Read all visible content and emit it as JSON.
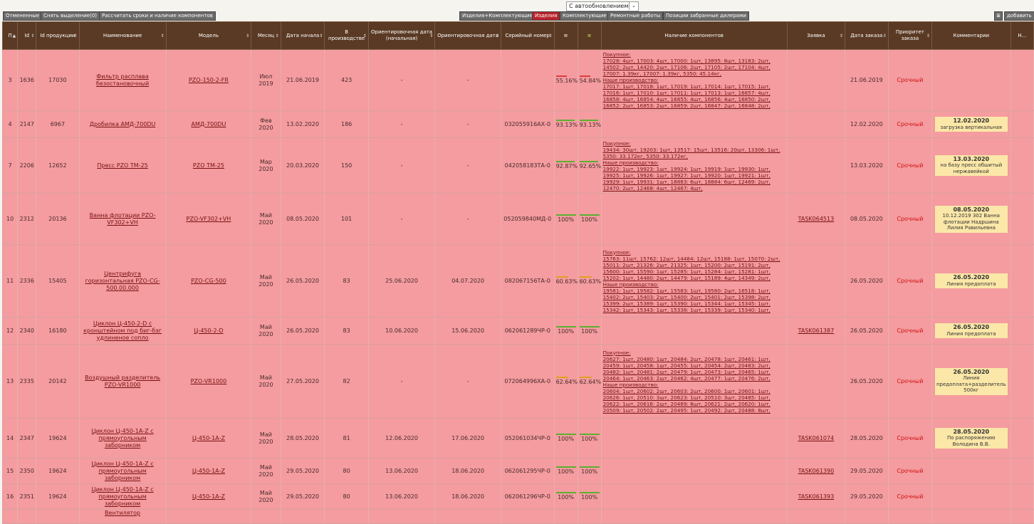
{
  "toolbar": {
    "buttons": [
      "Отмененные",
      "Снять выделение(0)",
      "Рассчитать сроки и наличие компонентов"
    ],
    "autoupdate": "С автообновлением",
    "tabs": [
      "Изделия+Комплектующие",
      "Изделия",
      "Комплектующие",
      "Ремонтные работы",
      "Позиции забранные дилерами"
    ],
    "active_tab": "Изделия",
    "add_label": "добавить"
  },
  "columns": [
    "П",
    "Id",
    "Id продукции",
    "Наименование",
    "Модель",
    "Месяц",
    "Дата начала",
    "В производстве",
    "Ориентировочная дата (начальная)",
    "Ориентировочная дата",
    "Серийный номер",
    "",
    "",
    "Наличие компонентов",
    "Заявка",
    "Дата заказа",
    "Приоритет заказа",
    "Комментарии",
    "Н..."
  ],
  "colors": {
    "header": "#5a3a24",
    "row": "#f49ca0",
    "comment": "#fbe7a8",
    "bar_red": "#d84040",
    "bar_green": "#5ab030",
    "bar_orange": "#e0a020"
  },
  "rows": [
    {
      "n": "3",
      "id": "1636",
      "pid": "17030",
      "name": "Фильтр расплава безостановочный",
      "model": "PZO-150-2-FR",
      "month": "Июл 2019",
      "start": "21.06.2019",
      "inprod": "423",
      "est_start": "-",
      "est": "-",
      "serial": "",
      "p1": "55.16%",
      "p2": "54.84%",
      "bar": "red",
      "comp_h1": "Покупное:",
      "comp_b1": "17028: 4шт, 17003: 4шт, 17000: 1шт, 13895: 8шт, 13183: 2шт, 14502: 2шт, 14420: 2шт, 17106: 2шт, 17105: 2шт, 17104: 4шт, 17007: 1.39кг, 17007: 1.39кг, 5350: 45.14кг,",
      "comp_h2": "Наше производство:",
      "comp_b2": "17017: 1шт, 17018: 1шт, 17019: 1шт, 17014: 1шт, 17015: 1шт, 17016: 1шт, 17010: 1шт, 17011: 1шт, 17013: 1шт, 16857: 4шт, 16858: 4шт, 16854: 4шт, 16855: 4шт, 16856: 4шт, 16850: 2шт, 16852: 2шт, 16853: 2шт, 16859: 2шт, 16847: 2шт, 16848: 2шт,",
      "task": "",
      "odate": "21.06.2019",
      "prio": "Срочный",
      "cd": "",
      "ct": "",
      "height": 86
    },
    {
      "n": "4",
      "id": "2147",
      "pid": "6967",
      "name": "Дробилка АМД-700DU",
      "model": "АМД-700DU",
      "month": "Фев 2020",
      "start": "13.02.2020",
      "inprod": "186",
      "est_start": "-",
      "est": "-",
      "serial": "032055916АХ-0",
      "p1": "93.13%",
      "p2": "93.13%",
      "bar": "green",
      "comp_h1": "",
      "comp_b1": "",
      "comp_h2": "",
      "comp_b2": "",
      "task": "",
      "odate": "12.02.2020",
      "prio": "Срочный",
      "cd": "12.02.2020",
      "ct": "загрузка вертикальная",
      "height": 38
    },
    {
      "n": "7",
      "id": "2206",
      "pid": "12652",
      "name": "Пресс PZO TM-25",
      "model": "PZO TM-25",
      "month": "Мар 2020",
      "start": "20.03.2020",
      "inprod": "150",
      "est_start": "-",
      "est": "-",
      "serial": "042058183ТА-0",
      "p1": "92.87%",
      "p2": "92.65%",
      "bar": "green",
      "comp_h1": "Покупное:",
      "comp_b1": "19434: 30шт, 19203: 1шт, 13517: 15шт, 13516: 20шт, 13306: 1шт, 5350: 33.172кг, 5350: 33.172кг,",
      "comp_h2": "Наше производство:",
      "comp_b2": "19922: 1шт, 19923: 1шт, 19924: 1шт, 19919: 1шт, 19930: 1шт, 19925: 1шт, 19926: 1шт, 19927: 1шт, 19920: 1шт, 19921: 1шт, 19929: 1шт, 19931: 1шт, 18883: 6шт, 18884: 6шт, 12469: 2шт, 12470: 2шт, 12468: 4шт, 12467: 4шт,",
      "task": "",
      "odate": "13.03.2020",
      "prio": "Срочный",
      "cd": "13.03.2020",
      "ct": "на базу пресс обшитый нержавейкой",
      "height": 78
    },
    {
      "n": "10",
      "id": "2312",
      "pid": "20136",
      "name": "Ванна флотации PZO-VF302+VH",
      "model": "PZO-VF302+VH",
      "month": "Май 2020",
      "start": "08.05.2020",
      "inprod": "101",
      "est_start": "-",
      "est": "-",
      "serial": "052059840МД-0",
      "p1": "100%",
      "p2": "100%",
      "bar": "green",
      "comp_h1": "",
      "comp_b1": "",
      "comp_h2": "",
      "comp_b2": "",
      "task": "TASK064513",
      "odate": "08.05.2020",
      "prio": "Срочный",
      "cd": "08.05.2020",
      "ct": "10.12.2019 302 Ванна флотации Надршина Лилия Равильевна",
      "height": 72
    },
    {
      "n": "11",
      "id": "2336",
      "pid": "15405",
      "name": "Центрифуга горизонтальная PZO-CG-500.00.000",
      "model": "PZO-CG-500",
      "month": "Май 2020",
      "start": "26.05.2020",
      "inprod": "83",
      "est_start": "25.06.2020",
      "est": "04.07.2020",
      "serial": "082067156ТА-0",
      "p1": "60.63%",
      "p2": "60.63%",
      "bar": "orange",
      "comp_h1": "Покупное:",
      "comp_b1": "15763: 11шт, 15762: 12шт, 14484: 12шт, 15188: 1шт, 15070: 2шт, 15011: 2шт, 21326: 2шт, 21325: 1шт, 15200: 2шт, 15191: 2шт, 15600: 1шт, 15590: 1шт, 15285: 1шт, 15284: 1шт, 15281: 1шт, 15202: 1шт, 14480: 2шт, 14479: 1шт, 15189: 4шт, 14349: 2шт,",
      "comp_h2": "Наше производство:",
      "comp_b2": "19581: 1шт, 19582: 1шт, 15583: 1шт, 19580: 2шт, 16518: 1шт, 15402: 2шт, 15403: 2шт, 15400: 2шт, 15401: 2шт, 15398: 2шт, 15399: 2шт, 15389: 1шт, 15390: 1шт, 15344: 1шт, 15345: 1шт, 15342: 1шт, 15343: 1шт, 15338: 1шт, 15339: 1шт, 15340: 1шт,",
      "task": "",
      "odate": "26.05.2020",
      "prio": "Срочный",
      "cd": "26.05.2020",
      "ct": "Линия предоплата",
      "height": 102
    },
    {
      "n": "12",
      "id": "2340",
      "pid": "16180",
      "name": "Циклон Ц-450-2-D с кронштейном под биг-бэг удлиненое сопло",
      "model": "Ц-450-2-D",
      "month": "Май 2020",
      "start": "26.05.2020",
      "inprod": "83",
      "est_start": "10.06.2020",
      "est": "15.06.2020",
      "serial": "062061289ЧР-0",
      "p1": "100%",
      "p2": "100%",
      "bar": "green",
      "comp_h1": "",
      "comp_b1": "",
      "comp_h2": "",
      "comp_b2": "",
      "task": "TASK061387",
      "odate": "26.05.2020",
      "prio": "Срочный",
      "cd": "26.05.2020",
      "ct": "Линия предоплата",
      "height": 38
    },
    {
      "n": "13",
      "id": "2335",
      "pid": "20142",
      "name": "Воздушный разделитель PZO-VR1000",
      "model": "PZO-VR1000",
      "month": "Май 2020",
      "start": "27.05.2020",
      "inprod": "82",
      "est_start": "-",
      "est": "-",
      "serial": "072064996ХА-0",
      "p1": "62.64%",
      "p2": "62.64%",
      "bar": "orange",
      "comp_h1": "Покупное:",
      "comp_b1": "20627: 1шт, 20480: 1шт, 20484: 2шт, 20478: 1шт, 20461: 1шт, 20459: 1шт, 20458: 1шт, 20455: 1шт, 20454: 2шт, 20483: 2шт, 20482: 1шт, 20481: 2шт, 20479: 1шт, 20473: 1шт, 20465: 1шт, 20464: 1шт, 20463: 2шт, 20462: 4шт, 20477: 1шт, 20476: 2шт,",
      "comp_h2": "Наше производство:",
      "comp_b2": "20604: 1шт, 20602: 2шт, 20603: 2шт, 20600: 1шт, 20601: 1шт, 20626: 1шт, 20510: 3шт, 20623: 1шт, 20510: 3шт, 20485: 1шт, 20622: 1шт, 20616: 2шт, 20489: 8шт, 20621: 2шт, 20620: 1шт, 20509: 1шт, 20502: 2шт, 20495: 1шт, 20492: 2шт, 20488: 8шт,",
      "task": "",
      "odate": "26.05.2020",
      "prio": "Срочный",
      "cd": "26.05.2020",
      "ct": "Линия предоплата+разделитель 500кг",
      "height": 104
    },
    {
      "n": "14",
      "id": "2347",
      "pid": "19624",
      "name": "Циклон Ц-450-1А-Z с прямоугольным заборником",
      "model": "Ц-450-1А-Z",
      "month": "Май 2020",
      "start": "28.05.2020",
      "inprod": "81",
      "est_start": "12.06.2020",
      "est": "17.06.2020",
      "serial": "052061034ЧР-0",
      "p1": "100%",
      "p2": "100%",
      "bar": "green",
      "comp_h1": "",
      "comp_b1": "",
      "comp_h2": "",
      "comp_b2": "",
      "task": "TASK061074",
      "odate": "28.05.2020",
      "prio": "Срочный",
      "cd": "28.05.2020",
      "ct": "По распоряжению Володина В.В.",
      "height": 56
    },
    {
      "n": "15",
      "id": "2350",
      "pid": "19624",
      "name": "Циклон Ц-450-1А-Z с прямоугольным заборником",
      "model": "Ц-450-1А-Z",
      "month": "Май 2020",
      "start": "29.05.2020",
      "inprod": "80",
      "est_start": "13.06.2020",
      "est": "18.06.2020",
      "serial": "062061295ЧР-0",
      "p1": "100%",
      "p2": "100%",
      "bar": "green",
      "comp_h1": "",
      "comp_b1": "",
      "comp_h2": "",
      "comp_b2": "",
      "task": "TASK061390",
      "odate": "29.05.2020",
      "prio": "Срочный",
      "cd": "",
      "ct": "",
      "height": 36
    },
    {
      "n": "16",
      "id": "2351",
      "pid": "19624",
      "name": "Циклон Ц-450-1А-Z с прямоугольным заборником",
      "model": "Ц-450-1А-Z",
      "month": "Май 2020",
      "start": "29.05.2020",
      "inprod": "80",
      "est_start": "13.06.2020",
      "est": "18.06.2020",
      "serial": "062061296ЧР-0",
      "p1": "100%",
      "p2": "100%",
      "bar": "green",
      "comp_h1": "",
      "comp_b1": "",
      "comp_h2": "",
      "comp_b2": "",
      "task": "TASK061393",
      "odate": "29.05.2020",
      "prio": "Срочный",
      "cd": "",
      "ct": "",
      "height": 36
    }
  ],
  "partial_row_name": "Вентилятор"
}
